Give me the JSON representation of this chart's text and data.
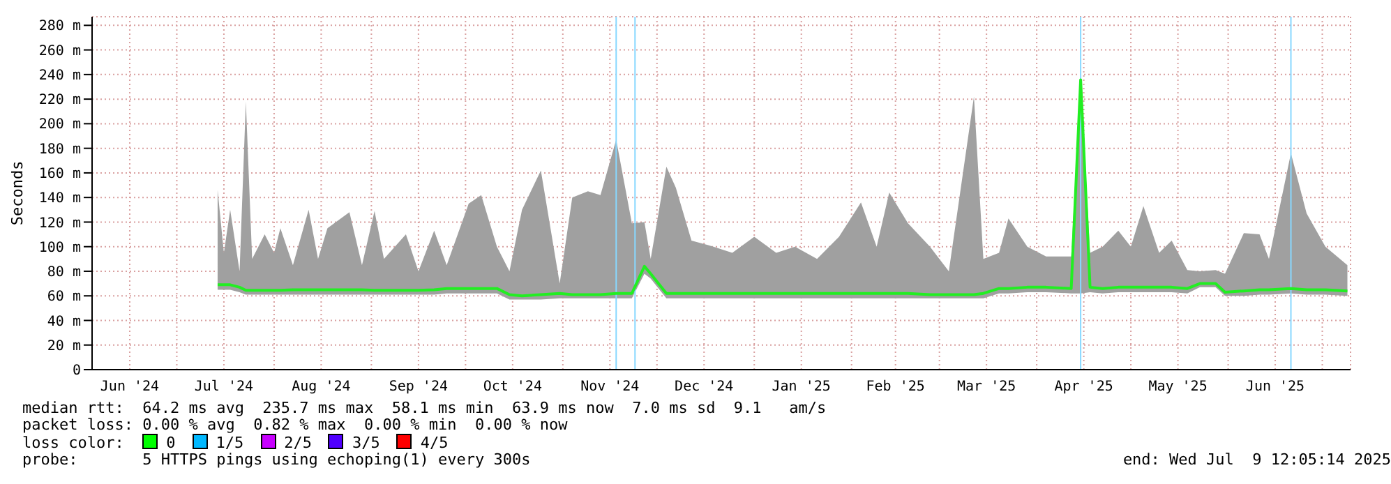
{
  "chart_data": {
    "type": "line",
    "ylabel": "Seconds",
    "x": [
      "2024-07-14",
      "2024-07-16",
      "2024-07-18",
      "2024-07-21",
      "2024-07-23",
      "2024-07-25",
      "2024-07-29",
      "2024-08-01",
      "2024-08-03",
      "2024-08-07",
      "2024-08-12",
      "2024-08-15",
      "2024-08-18",
      "2024-08-25",
      "2024-08-29",
      "2024-09-02",
      "2024-09-05",
      "2024-09-12",
      "2024-09-16",
      "2024-09-21",
      "2024-09-25",
      "2024-10-02",
      "2024-10-06",
      "2024-10-11",
      "2024-10-15",
      "2024-10-19",
      "2024-10-25",
      "2024-10-31",
      "2024-11-04",
      "2024-11-09",
      "2024-11-13",
      "2024-11-18",
      "2024-11-23",
      "2024-11-27",
      "2024-11-29",
      "2024-12-04",
      "2024-12-07",
      "2024-12-12",
      "2024-12-19",
      "2024-12-25",
      "2025-01-01",
      "2025-01-08",
      "2025-01-14",
      "2025-01-21",
      "2025-01-28",
      "2025-02-04",
      "2025-02-09",
      "2025-02-13",
      "2025-02-19",
      "2025-02-26",
      "2025-03-04",
      "2025-03-12",
      "2025-03-15",
      "2025-03-20",
      "2025-03-23",
      "2025-03-29",
      "2025-04-04",
      "2025-04-12",
      "2025-04-15",
      "2025-04-18",
      "2025-04-22",
      "2025-04-27",
      "2025-05-01",
      "2025-05-05",
      "2025-05-10",
      "2025-05-14",
      "2025-05-19",
      "2025-05-23",
      "2025-05-28",
      "2025-05-31",
      "2025-06-06",
      "2025-06-11",
      "2025-06-14",
      "2025-06-21",
      "2025-06-26",
      "2025-07-02",
      "2025-07-09"
    ],
    "series": [
      {
        "color": "#22ee22",
        "values": [
          69,
          69,
          69,
          67,
          64.5,
          64.5,
          64.5,
          64.5,
          64.5,
          65,
          65,
          65,
          65,
          65,
          65,
          64.5,
          64.5,
          64.5,
          64.5,
          65,
          66,
          66,
          66,
          66,
          61,
          60,
          61,
          62,
          61,
          61,
          61,
          62,
          62,
          84,
          78,
          62,
          62,
          62,
          62,
          62,
          62,
          62,
          62,
          62,
          62,
          62,
          62,
          62,
          62,
          61,
          61,
          61,
          62,
          66,
          66,
          67,
          67,
          66,
          235.7,
          67,
          66,
          67,
          67,
          67,
          67,
          67,
          66,
          70,
          70,
          63,
          64,
          65,
          65,
          66,
          65,
          65,
          64
        ],
        "lower": [
          65,
          65,
          65,
          63,
          61,
          61,
          61,
          61,
          61,
          61,
          61,
          61,
          61,
          61,
          61,
          61,
          61,
          61,
          61,
          61,
          62,
          62,
          62,
          62,
          57,
          57,
          57,
          58,
          58,
          58,
          58,
          58,
          58,
          78,
          74,
          58,
          58,
          58,
          58,
          58,
          58,
          58,
          58,
          58,
          58,
          58,
          58,
          58,
          58,
          58,
          58,
          58,
          58,
          62,
          62,
          63,
          63,
          62,
          62,
          63,
          62,
          63,
          63,
          63,
          63,
          63,
          62,
          67,
          67,
          60,
          60,
          61,
          61,
          62,
          61,
          61,
          60
        ],
        "upper": [
          146,
          95,
          130,
          80,
          218,
          90,
          110,
          95,
          115,
          85,
          130,
          90,
          115,
          128,
          85,
          129,
          90,
          110,
          80,
          113,
          85,
          135,
          142,
          100,
          80,
          130,
          162,
          70,
          140,
          145,
          142,
          187,
          119,
          120,
          90,
          165,
          148,
          105,
          100,
          95,
          108,
          95,
          100,
          90,
          108,
          136,
          100,
          144,
          119,
          100,
          80,
          222,
          90,
          95,
          123,
          100,
          92,
          92,
          236,
          95,
          100,
          113,
          100,
          133,
          95,
          105,
          81,
          80,
          81,
          78,
          111,
          110,
          90,
          176,
          127,
          100,
          85
        ]
      }
    ],
    "xlim": [
      "2024-06-04",
      "2025-07-10"
    ],
    "xticks": [
      {
        "value": "2024-06-16",
        "label": "Jun '24"
      },
      {
        "value": "2024-07-01",
        "label": null
      },
      {
        "value": "2024-07-16",
        "label": "Jul '24"
      },
      {
        "value": "2024-08-01",
        "label": null
      },
      {
        "value": "2024-08-16",
        "label": "Aug '24"
      },
      {
        "value": "2024-09-01",
        "label": null
      },
      {
        "value": "2024-09-16",
        "label": "Sep '24"
      },
      {
        "value": "2024-10-01",
        "label": null
      },
      {
        "value": "2024-10-16",
        "label": "Oct '24"
      },
      {
        "value": "2024-11-01",
        "label": null
      },
      {
        "value": "2024-11-16",
        "label": "Nov '24"
      },
      {
        "value": "2024-12-01",
        "label": null
      },
      {
        "value": "2024-12-16",
        "label": "Dec '24"
      },
      {
        "value": "2025-01-01",
        "label": null
      },
      {
        "value": "2025-01-16",
        "label": "Jan '25"
      },
      {
        "value": "2025-02-01",
        "label": null
      },
      {
        "value": "2025-02-15",
        "label": "Feb '25"
      },
      {
        "value": "2025-03-01",
        "label": null
      },
      {
        "value": "2025-03-16",
        "label": "Mar '25"
      },
      {
        "value": "2025-04-01",
        "label": null
      },
      {
        "value": "2025-04-16",
        "label": "Apr '25"
      },
      {
        "value": "2025-05-01",
        "label": null
      },
      {
        "value": "2025-05-16",
        "label": "May '25"
      },
      {
        "value": "2025-06-01",
        "label": null
      },
      {
        "value": "2025-06-16",
        "label": "Jun '25"
      },
      {
        "value": "2025-07-01",
        "label": null
      }
    ],
    "ylim": [
      0,
      287
    ],
    "yticks": [
      0,
      {
        "value": 20,
        "label": "20 m"
      },
      {
        "value": 40,
        "label": "40 m"
      },
      {
        "value": 60,
        "label": "60 m"
      },
      {
        "value": 80,
        "label": "80 m"
      },
      {
        "value": 100,
        "label": "100 m"
      },
      {
        "value": 120,
        "label": "120 m"
      },
      {
        "value": 140,
        "label": "140 m"
      },
      {
        "value": 160,
        "label": "160 m"
      },
      {
        "value": 180,
        "label": "180 m"
      },
      {
        "value": 200,
        "label": "200 m"
      },
      {
        "value": 220,
        "label": "220 m"
      },
      {
        "value": 240,
        "label": "240 m"
      },
      {
        "value": 260,
        "label": "260 m"
      },
      {
        "value": 280,
        "label": "280 m"
      }
    ],
    "ref_lines": [
      {
        "axis": "x",
        "value": "2024-11-18",
        "color": "#88d8ff"
      },
      {
        "axis": "x",
        "value": "2024-11-24",
        "color": "#88d8ff"
      },
      {
        "axis": "x",
        "value": "2025-04-15",
        "color": "#88d8ff"
      },
      {
        "axis": "x",
        "value": "2025-06-21",
        "color": "#88d8ff"
      }
    ],
    "grid": true,
    "legend": false,
    "marker": "none",
    "line_style": "solid",
    "annotations": [
      "median rtt:  64.2 ms avg  235.7 ms max  58.1 ms min  63.9 ms now  7.0 ms sd  9.1   am/s",
      "packet loss: 0.00 % avg  0.82 % max  0.00 % min  0.00 % now",
      "loss color:  0  1/5  2/5  3/5  4/5",
      "probe:       5 HTTPS pings using echoping(1) every 300s",
      "end: Wed Jul  9 12:05:14 2025"
    ]
  }
}
